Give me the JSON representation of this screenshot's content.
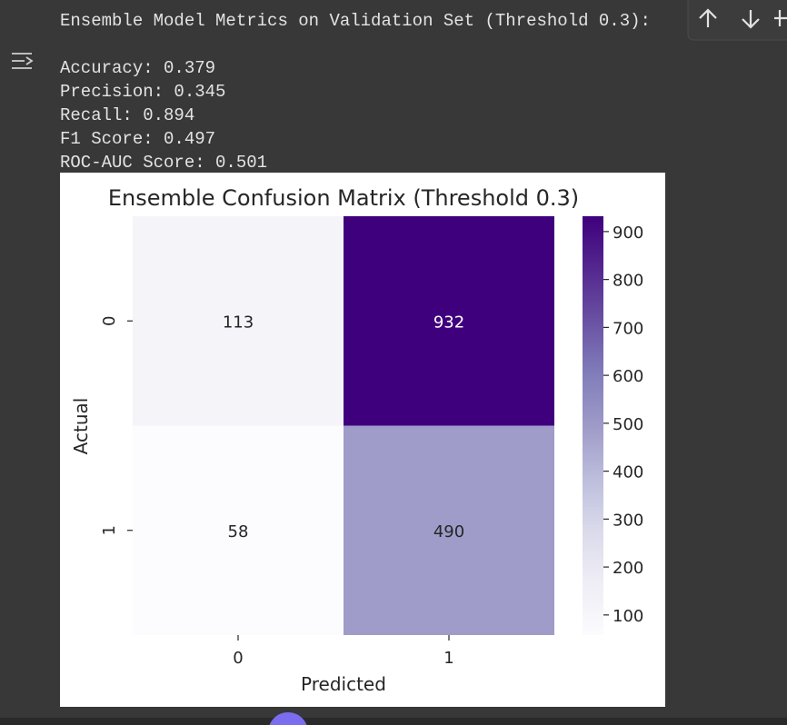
{
  "output_text": {
    "header": "Ensemble Model Metrics on Validation Set (Threshold 0.3):",
    "lines": [
      "Accuracy: 0.379",
      "Precision: 0.345",
      "Recall: 0.894",
      "F1 Score: 0.497",
      "ROC-AUC Score: 0.501"
    ]
  },
  "chart_data": {
    "type": "heatmap",
    "title": "Ensemble Confusion Matrix (Threshold 0.3)",
    "x_label": "Predicted",
    "y_label": "Actual",
    "x_categories": [
      "0",
      "1"
    ],
    "y_categories": [
      "0",
      "1"
    ],
    "values": [
      [
        113,
        932
      ],
      [
        58,
        490
      ]
    ],
    "colormap": "Purples",
    "clim": [
      58,
      932
    ],
    "colorbar_ticks": [
      100,
      200,
      300,
      400,
      500,
      600,
      700,
      800,
      900
    ]
  }
}
